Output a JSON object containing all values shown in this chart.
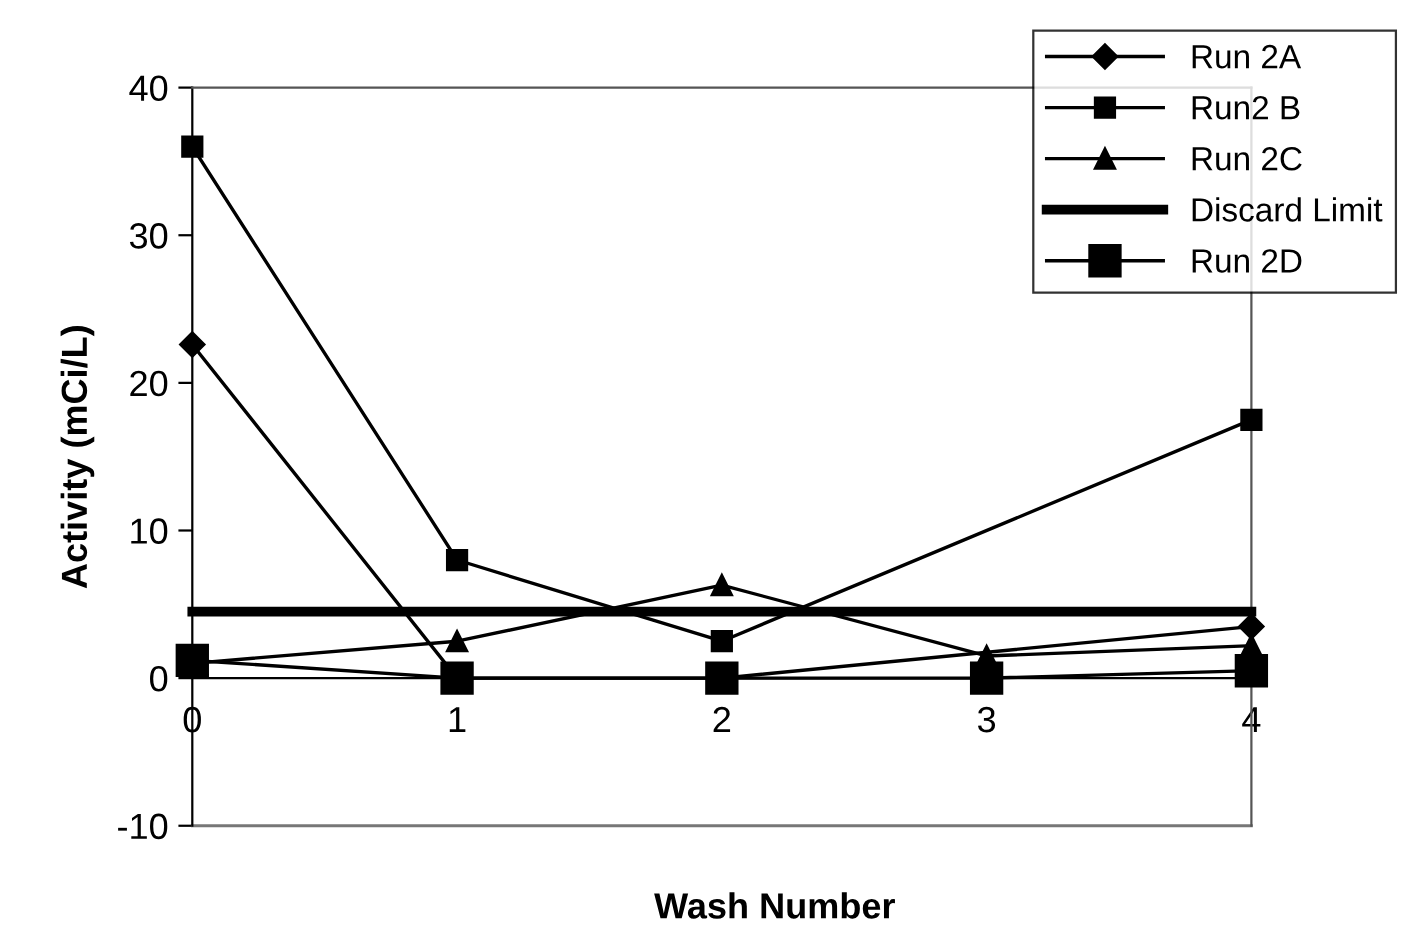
{
  "chart_data": {
    "type": "line",
    "xlabel": "Wash Number",
    "ylabel": "Activity (mCi/L)",
    "x": [
      0,
      1,
      2,
      3,
      4
    ],
    "series": [
      {
        "name": "Run 2A",
        "color": "#000000",
        "marker": "diamond",
        "values": [
          22.6,
          0,
          0,
          null,
          3.5
        ]
      },
      {
        "name": "Run2 B",
        "color": "#000000",
        "marker": "square",
        "values": [
          36,
          8,
          2.5,
          null,
          17.5
        ]
      },
      {
        "name": "Run 2C",
        "color": "#000000",
        "marker": "triangle",
        "values": [
          1,
          2.5,
          6.3,
          1.5,
          2.2
        ]
      },
      {
        "name": "Discard Limit",
        "color": "#000000",
        "marker": "none",
        "values": [
          4.5,
          4.5,
          4.5,
          4.5,
          4.5
        ]
      },
      {
        "name": "Run 2D",
        "color": "#000000",
        "marker": "square",
        "values": [
          1.2,
          0,
          0,
          0,
          0.5
        ]
      }
    ],
    "xlim": [
      0,
      4
    ],
    "xticks": [
      0,
      1,
      2,
      3,
      4
    ],
    "ylim": [
      -10,
      40
    ],
    "yticks": [
      -10,
      0,
      10,
      20,
      30,
      40
    ],
    "grid": false,
    "legend": "top right",
    "line_style": "solid"
  }
}
